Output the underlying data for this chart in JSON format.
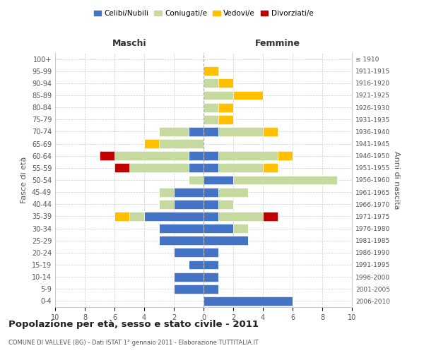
{
  "age_groups": [
    "100+",
    "95-99",
    "90-94",
    "85-89",
    "80-84",
    "75-79",
    "70-74",
    "65-69",
    "60-64",
    "55-59",
    "50-54",
    "45-49",
    "40-44",
    "35-39",
    "30-34",
    "25-29",
    "20-24",
    "15-19",
    "10-14",
    "5-9",
    "0-4"
  ],
  "birth_years": [
    "≤ 1910",
    "1911-1915",
    "1916-1920",
    "1921-1925",
    "1926-1930",
    "1931-1935",
    "1936-1940",
    "1941-1945",
    "1946-1950",
    "1951-1955",
    "1956-1960",
    "1961-1965",
    "1966-1970",
    "1971-1975",
    "1976-1980",
    "1981-1985",
    "1986-1990",
    "1991-1995",
    "1996-2000",
    "2001-2005",
    "2006-2010"
  ],
  "colors": {
    "celibi": "#4472c4",
    "coniugati": "#c5d9a0",
    "vedovi": "#ffc000",
    "divorziati": "#c00000"
  },
  "maschi": {
    "celibi": [
      0,
      0,
      0,
      0,
      0,
      0,
      1,
      0,
      1,
      1,
      0,
      2,
      2,
      4,
      3,
      3,
      2,
      1,
      2,
      2,
      0
    ],
    "coniugati": [
      0,
      0,
      0,
      0,
      0,
      0,
      2,
      3,
      5,
      4,
      1,
      1,
      1,
      1,
      0,
      0,
      0,
      0,
      0,
      0,
      0
    ],
    "vedovi": [
      0,
      0,
      0,
      0,
      0,
      0,
      0,
      1,
      0,
      0,
      0,
      0,
      0,
      1,
      0,
      0,
      0,
      0,
      0,
      0,
      0
    ],
    "divorziati": [
      0,
      0,
      0,
      0,
      0,
      0,
      0,
      0,
      1,
      1,
      0,
      0,
      0,
      0,
      0,
      0,
      0,
      0,
      0,
      0,
      0
    ]
  },
  "femmine": {
    "celibi": [
      0,
      0,
      0,
      0,
      0,
      0,
      1,
      0,
      1,
      1,
      2,
      1,
      1,
      1,
      2,
      3,
      1,
      1,
      1,
      1,
      6
    ],
    "coniugati": [
      0,
      0,
      1,
      2,
      1,
      1,
      3,
      0,
      4,
      3,
      7,
      2,
      1,
      3,
      1,
      0,
      0,
      0,
      0,
      0,
      0
    ],
    "vedovi": [
      0,
      1,
      1,
      2,
      1,
      1,
      1,
      0,
      1,
      1,
      0,
      0,
      0,
      0,
      0,
      0,
      0,
      0,
      0,
      0,
      0
    ],
    "divorziati": [
      0,
      0,
      0,
      0,
      0,
      0,
      0,
      0,
      0,
      0,
      0,
      0,
      0,
      1,
      0,
      0,
      0,
      0,
      0,
      0,
      0
    ]
  },
  "xlim": 10,
  "title": "Popolazione per età, sesso e stato civile - 2011",
  "subtitle": "COMUNE DI VALLEVE (BG) - Dati ISTAT 1° gennaio 2011 - Elaborazione TUTTITALIA.IT",
  "ylabel_left": "Fasce di età",
  "ylabel_right": "Anni di nascita",
  "xlabel_maschi": "Maschi",
  "xlabel_femmine": "Femmine",
  "legend_labels": [
    "Celibi/Nubili",
    "Coniugati/e",
    "Vedovi/e",
    "Divorziati/e"
  ],
  "bg_color": "#ffffff",
  "grid_color": "#cccccc"
}
